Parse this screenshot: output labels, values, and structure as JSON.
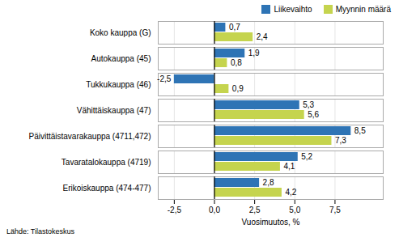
{
  "chart_data": {
    "type": "bar",
    "orientation": "horizontal",
    "categories": [
      "Koko kauppa (G)",
      "Autokauppa (45)",
      "Tukkukauppa (46)",
      "Vähittäiskauppa (47)",
      "Päivittäistavarakauppa (4711,472)",
      "Tavaratalokauppa (4719)",
      "Erikoiskauppa (474-477)"
    ],
    "series": [
      {
        "name": "Liikevaihto",
        "color": "#2E74B5",
        "values": [
          0.7,
          1.9,
          -2.5,
          5.3,
          8.5,
          5.2,
          2.8
        ],
        "value_labels": [
          "0,7",
          "1,9",
          "-2,5",
          "5,3",
          "8,5",
          "5,2",
          "2,8"
        ]
      },
      {
        "name": "Myynnin määrä",
        "color": "#C5D44E",
        "values": [
          2.4,
          0.8,
          0.9,
          5.6,
          7.3,
          4.1,
          4.2
        ],
        "value_labels": [
          "2,4",
          "0,8",
          "0,9",
          "5,6",
          "7,3",
          "4,1",
          "4,2"
        ]
      }
    ],
    "xlabel": "Vuosimuutos, %",
    "xlim": [
      -3.5,
      10.5
    ],
    "xticks": [
      {
        "value": -2.5,
        "label": "-2,5"
      },
      {
        "value": 0.0,
        "label": "0,0"
      },
      {
        "value": 2.5,
        "label": "2,5"
      },
      {
        "value": 5.0,
        "label": "5,0"
      },
      {
        "value": 7.5,
        "label": "7,5"
      }
    ],
    "grid": true,
    "legend": "top right",
    "data_labels": true,
    "annotations": [
      "Lähde: Tilastokeskus"
    ]
  }
}
